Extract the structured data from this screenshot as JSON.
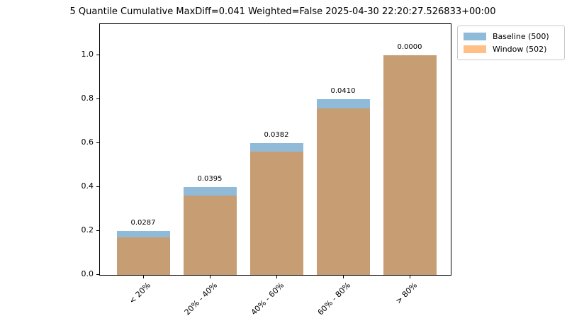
{
  "title": "5 Quantile Cumulative MaxDiff=0.041 Weighted=False 2025-04-30 22:20:27.526833+00:00",
  "colors": {
    "baseline": "#1f77b4",
    "window": "#ff7f0e",
    "bar_alpha": 0.5,
    "spine": "#000000",
    "text": "#000000",
    "legend_border": "#c8c8c8"
  },
  "legend": {
    "items": [
      {
        "label": "Baseline (500)",
        "series": "baseline"
      },
      {
        "label": "Window (502)",
        "series": "window"
      }
    ]
  },
  "chart_data": {
    "type": "bar",
    "title": "5 Quantile Cumulative MaxDiff=0.041 Weighted=False 2025-04-30 22:20:27.526833+00:00",
    "categories": [
      "< 20%",
      "20% - 40%",
      "40% - 60%",
      "60% - 80%",
      "> 80%"
    ],
    "series": [
      {
        "name": "Baseline (500)",
        "values": [
          0.2,
          0.4,
          0.6,
          0.8,
          1.0
        ]
      },
      {
        "name": "Window (502)",
        "values": [
          0.1713,
          0.3605,
          0.5618,
          0.759,
          1.0
        ]
      }
    ],
    "bar_labels": [
      "0.0287",
      "0.0395",
      "0.0382",
      "0.0410",
      "0.0000"
    ],
    "ytick_labels": [
      "0.0",
      "0.2",
      "0.4",
      "0.6",
      "0.8",
      "1.0"
    ],
    "ytick_values": [
      0.0,
      0.2,
      0.4,
      0.6,
      0.8,
      1.0
    ],
    "ylim": [
      0.0,
      1.148
    ],
    "xlabel": "",
    "ylabel": "",
    "grid": false,
    "bars_overlap": true,
    "xtick_rotation": 45,
    "legend_position": "upper right outside axes"
  }
}
